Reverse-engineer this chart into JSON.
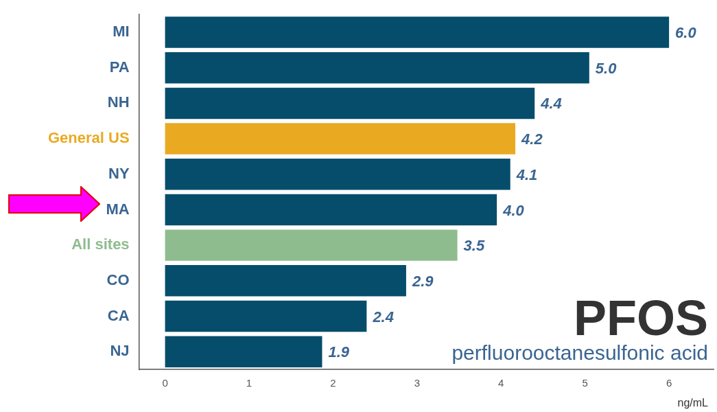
{
  "chart_data": {
    "type": "bar",
    "orientation": "horizontal",
    "title": "PFOS",
    "subtitle": "perfluorooctanesulfonic acid",
    "xlabel": "ng/mL",
    "categories": [
      "MI",
      "PA",
      "NH",
      "General US",
      "NY",
      "MA",
      "All sites",
      "CO",
      "CA",
      "NJ"
    ],
    "values": [
      6.0,
      5.05,
      4.4,
      4.17,
      4.11,
      3.95,
      3.48,
      2.87,
      2.4,
      1.87
    ],
    "value_labels": [
      "6.0",
      "5.0",
      "4.4",
      "4.2",
      "4.1",
      "4.0",
      "3.5",
      "2.9",
      "2.4",
      "1.9"
    ],
    "colors": [
      "#054d6b",
      "#054d6b",
      "#054d6b",
      "#e9aa22",
      "#054d6b",
      "#054d6b",
      "#8fbc8f",
      "#054d6b",
      "#054d6b",
      "#054d6b"
    ],
    "xlim": [
      -0.31,
      6.53
    ],
    "xticks": [
      0,
      1,
      2,
      3,
      4,
      5,
      6
    ]
  }
}
